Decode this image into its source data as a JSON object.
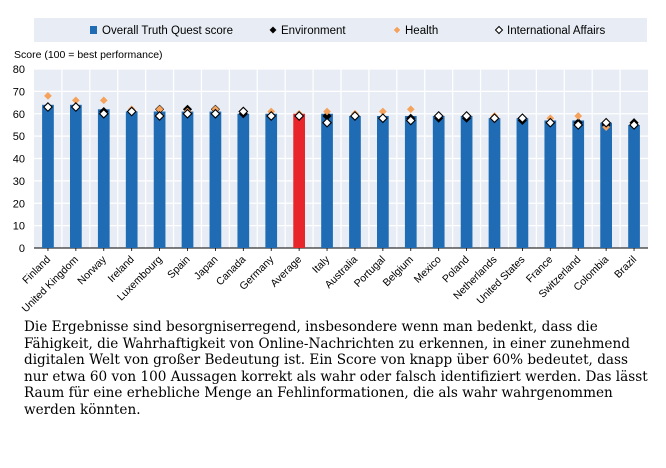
{
  "chart_data": {
    "type": "bar",
    "ylabel": "Score (100 = best performance)",
    "ylim": [
      0,
      80
    ],
    "yticks": [
      0,
      10,
      20,
      30,
      40,
      50,
      60,
      70,
      80
    ],
    "grid": true,
    "legend_position": "top",
    "categories": [
      "Finland",
      "United Kingdom",
      "Norway",
      "Ireland",
      "Luxembourg",
      "Spain",
      "Japan",
      "Canada",
      "Germany",
      "Average",
      "Italy",
      "Australia",
      "Portugal",
      "Belgium",
      "Mexico",
      "Poland",
      "Netherlands",
      "United States",
      "France",
      "Switzerland",
      "Colombia",
      "Brazil"
    ],
    "series": [
      {
        "name": "Overall Truth Quest score",
        "marker": "bar",
        "color": "#1f6cb5",
        "highlight_color": "#e8252b",
        "highlight_category": "Average",
        "values": [
          64,
          64,
          62,
          61,
          61,
          61,
          61,
          60,
          60,
          60,
          60,
          59,
          59,
          59,
          59,
          59,
          58,
          58,
          57,
          57,
          56,
          55
        ]
      },
      {
        "name": "Environment",
        "marker": "diamond",
        "color": "#000000",
        "values": [
          63,
          63,
          61,
          61,
          62,
          62,
          62,
          60,
          59,
          59,
          59,
          59,
          58,
          58,
          58,
          58,
          58,
          57,
          56,
          56,
          55,
          56
        ]
      },
      {
        "name": "Health",
        "marker": "diamond",
        "color": "#f5a25d",
        "values": [
          68,
          66,
          66,
          62,
          62,
          61,
          62,
          61,
          61,
          60,
          61,
          60,
          61,
          62,
          59,
          59,
          59,
          58,
          58,
          59,
          54,
          55
        ]
      },
      {
        "name": "International Affairs",
        "marker": "open-diamond",
        "color": "#000000",
        "values": [
          63,
          63,
          60,
          61,
          59,
          60,
          60,
          61,
          59,
          59,
          56,
          59,
          58,
          57,
          59,
          59,
          58,
          58,
          56,
          55,
          56,
          55
        ]
      }
    ]
  },
  "paragraph": "Die Ergebnisse sind besorgniserregend, insbesondere wenn man bedenkt, dass die Fähigkeit, die Wahrhaftigkeit von Online-Nachrichten zu erkennen, in einer zunehmend digitalen Welt von großer Bedeutung ist. Ein Score von knapp über 60% bedeutet, dass nur etwa 60 von 100 Aussagen korrekt als wahr oder falsch identifiziert werden. Das lässt Raum für eine erhebliche Menge an Fehlinformationen, die als wahr wahrgenommen werden könnten."
}
